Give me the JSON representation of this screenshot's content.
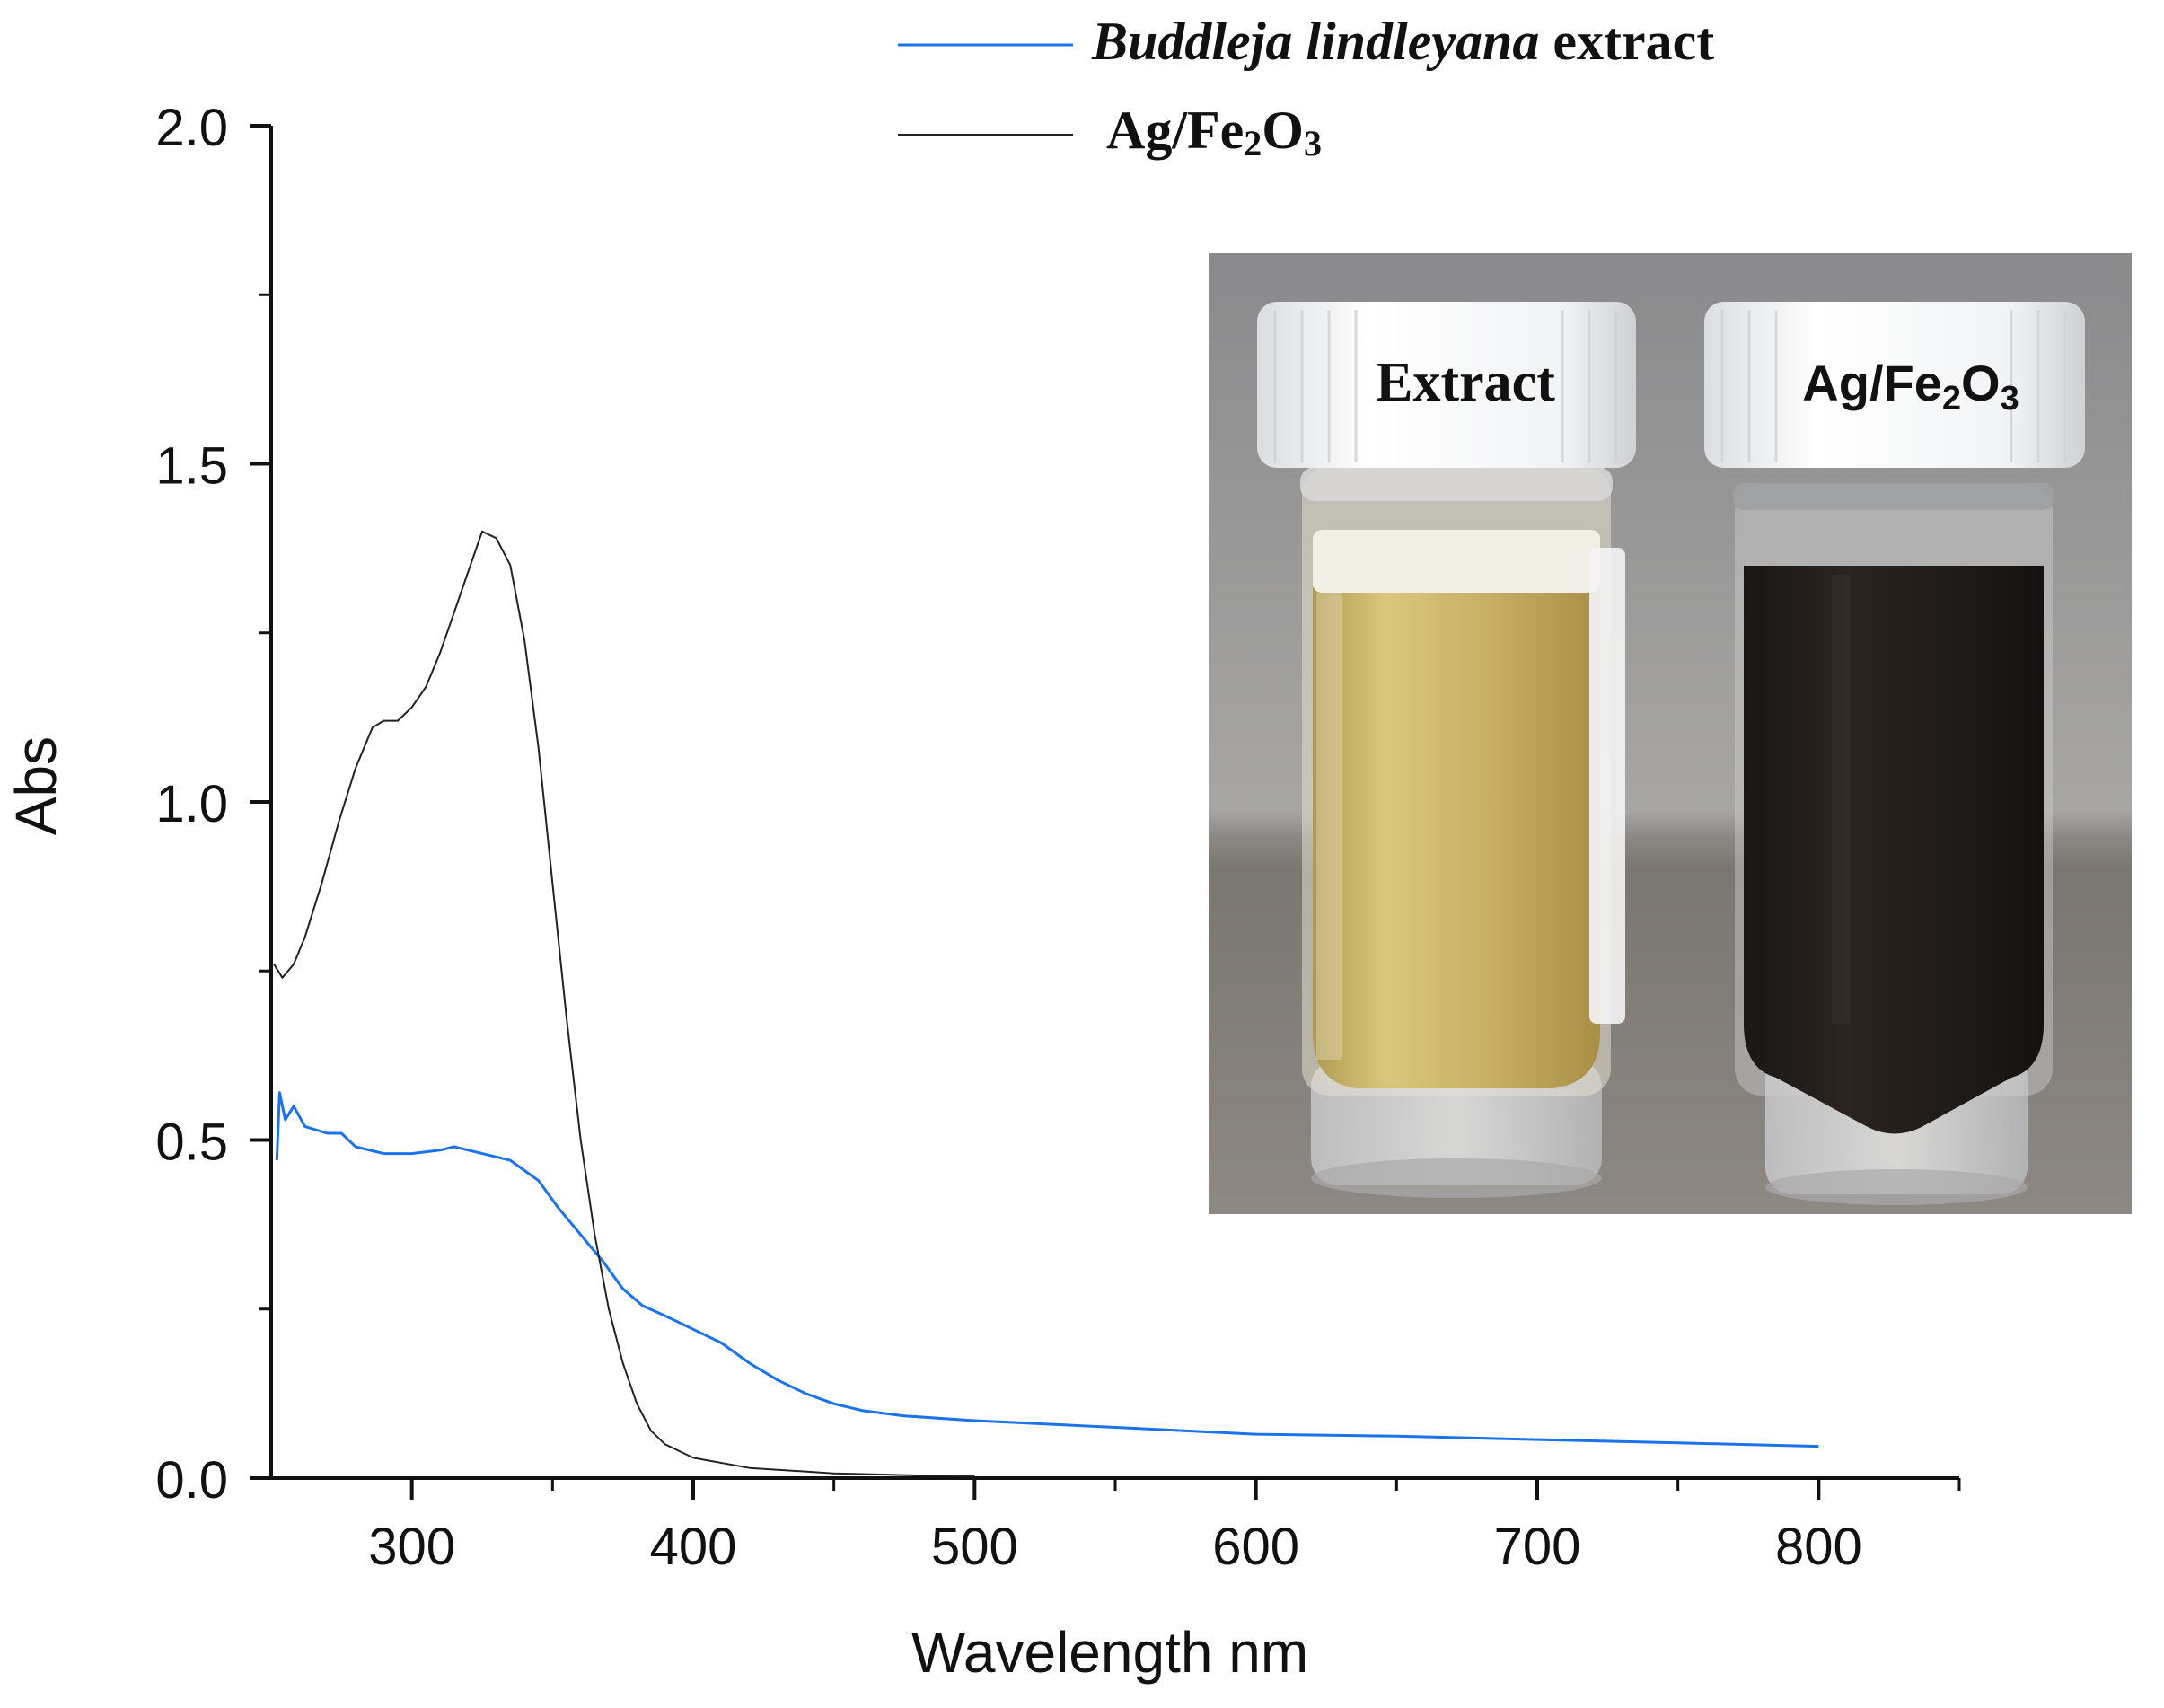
{
  "chart_data": {
    "type": "line",
    "xlabel": "Wavelength nm",
    "ylabel": "Abs",
    "xlim": [
      250,
      850
    ],
    "ylim": [
      0,
      2.0
    ],
    "x_ticks": [
      300,
      400,
      500,
      600,
      700,
      800
    ],
    "y_ticks": [
      0.0,
      0.5,
      1.0,
      1.5,
      2.0
    ],
    "y_tick_labels": [
      "0.0",
      "0.5",
      "1.0",
      "1.5",
      "2.0"
    ],
    "grid": false,
    "legend_position": "top-center",
    "series": [
      {
        "name": "Buddleja lindleyana extract",
        "name_italic": "Buddleja lindleyana",
        "name_rest": " extract",
        "color": "#1a73e8",
        "points": [
          [
            252,
            0.47
          ],
          [
            253,
            0.57
          ],
          [
            255,
            0.53
          ],
          [
            258,
            0.55
          ],
          [
            262,
            0.52
          ],
          [
            270,
            0.51
          ],
          [
            275,
            0.51
          ],
          [
            280,
            0.49
          ],
          [
            290,
            0.48
          ],
          [
            300,
            0.48
          ],
          [
            310,
            0.485
          ],
          [
            315,
            0.49
          ],
          [
            325,
            0.48
          ],
          [
            335,
            0.47
          ],
          [
            345,
            0.44
          ],
          [
            352,
            0.4
          ],
          [
            360,
            0.36
          ],
          [
            368,
            0.32
          ],
          [
            375,
            0.28
          ],
          [
            382,
            0.255
          ],
          [
            390,
            0.24
          ],
          [
            400,
            0.22
          ],
          [
            410,
            0.2
          ],
          [
            420,
            0.17
          ],
          [
            430,
            0.145
          ],
          [
            440,
            0.125
          ],
          [
            450,
            0.11
          ],
          [
            460,
            0.1
          ],
          [
            475,
            0.092
          ],
          [
            500,
            0.085
          ],
          [
            550,
            0.075
          ],
          [
            600,
            0.065
          ],
          [
            650,
            0.062
          ],
          [
            700,
            0.057
          ],
          [
            750,
            0.052
          ],
          [
            800,
            0.047
          ]
        ]
      },
      {
        "name": "Ag/Fe2O3",
        "name_base1": "Ag/Fe",
        "name_sub1": "2",
        "name_base2": "O",
        "name_sub2": "3",
        "color": "#222222",
        "points": [
          [
            251,
            0.76
          ],
          [
            254,
            0.74
          ],
          [
            258,
            0.76
          ],
          [
            262,
            0.8
          ],
          [
            268,
            0.88
          ],
          [
            274,
            0.97
          ],
          [
            280,
            1.05
          ],
          [
            286,
            1.11
          ],
          [
            290,
            1.12
          ],
          [
            295,
            1.12
          ],
          [
            300,
            1.14
          ],
          [
            305,
            1.17
          ],
          [
            310,
            1.22
          ],
          [
            315,
            1.28
          ],
          [
            320,
            1.34
          ],
          [
            325,
            1.4
          ],
          [
            330,
            1.39
          ],
          [
            335,
            1.35
          ],
          [
            340,
            1.24
          ],
          [
            345,
            1.08
          ],
          [
            350,
            0.88
          ],
          [
            355,
            0.68
          ],
          [
            360,
            0.5
          ],
          [
            365,
            0.36
          ],
          [
            370,
            0.25
          ],
          [
            375,
            0.17
          ],
          [
            380,
            0.11
          ],
          [
            385,
            0.07
          ],
          [
            390,
            0.05
          ],
          [
            400,
            0.03
          ],
          [
            420,
            0.015
          ],
          [
            450,
            0.007
          ],
          [
            480,
            0.004
          ],
          [
            500,
            0.003
          ]
        ]
      }
    ],
    "inset": {
      "left_label": "Extract",
      "right_label_base1": "Ag/Fe",
      "right_label_sub1": "2",
      "right_label_base2": "O",
      "right_label_sub2": "3"
    }
  }
}
